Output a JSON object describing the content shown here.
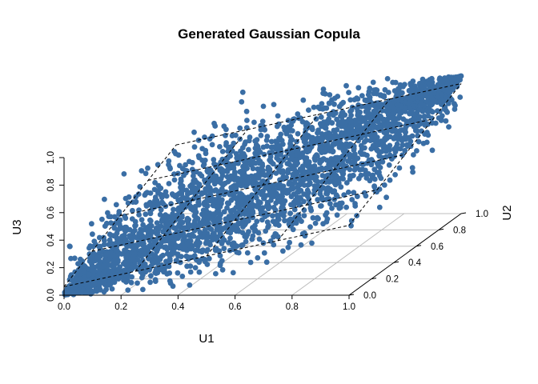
{
  "chart_data": {
    "type": "scatter",
    "subtype": "3d-scatter",
    "title": "Generated Gaussian Copula",
    "xlabel": "U1",
    "ylabel": "U2",
    "zlabel": "U3",
    "xlim": [
      0.0,
      1.0
    ],
    "ylim": [
      0.0,
      1.0
    ],
    "zlim": [
      0.0,
      1.0
    ],
    "x_ticks": [
      "0.0",
      "0.2",
      "0.4",
      "0.6",
      "0.8",
      "1.0"
    ],
    "y_ticks": [
      "0.0",
      "0.2",
      "0.4",
      "0.6",
      "0.8",
      "1.0"
    ],
    "z_ticks": [
      "0.0",
      "0.2",
      "0.4",
      "0.6",
      "0.8",
      "1.0"
    ],
    "point_color": "#3a6ea5",
    "dependence": "strong positive correlation between U1, U2 and U3",
    "regression_plane": {
      "style": "dashed",
      "color": "#000000"
    },
    "grid": true,
    "legend": "none"
  }
}
